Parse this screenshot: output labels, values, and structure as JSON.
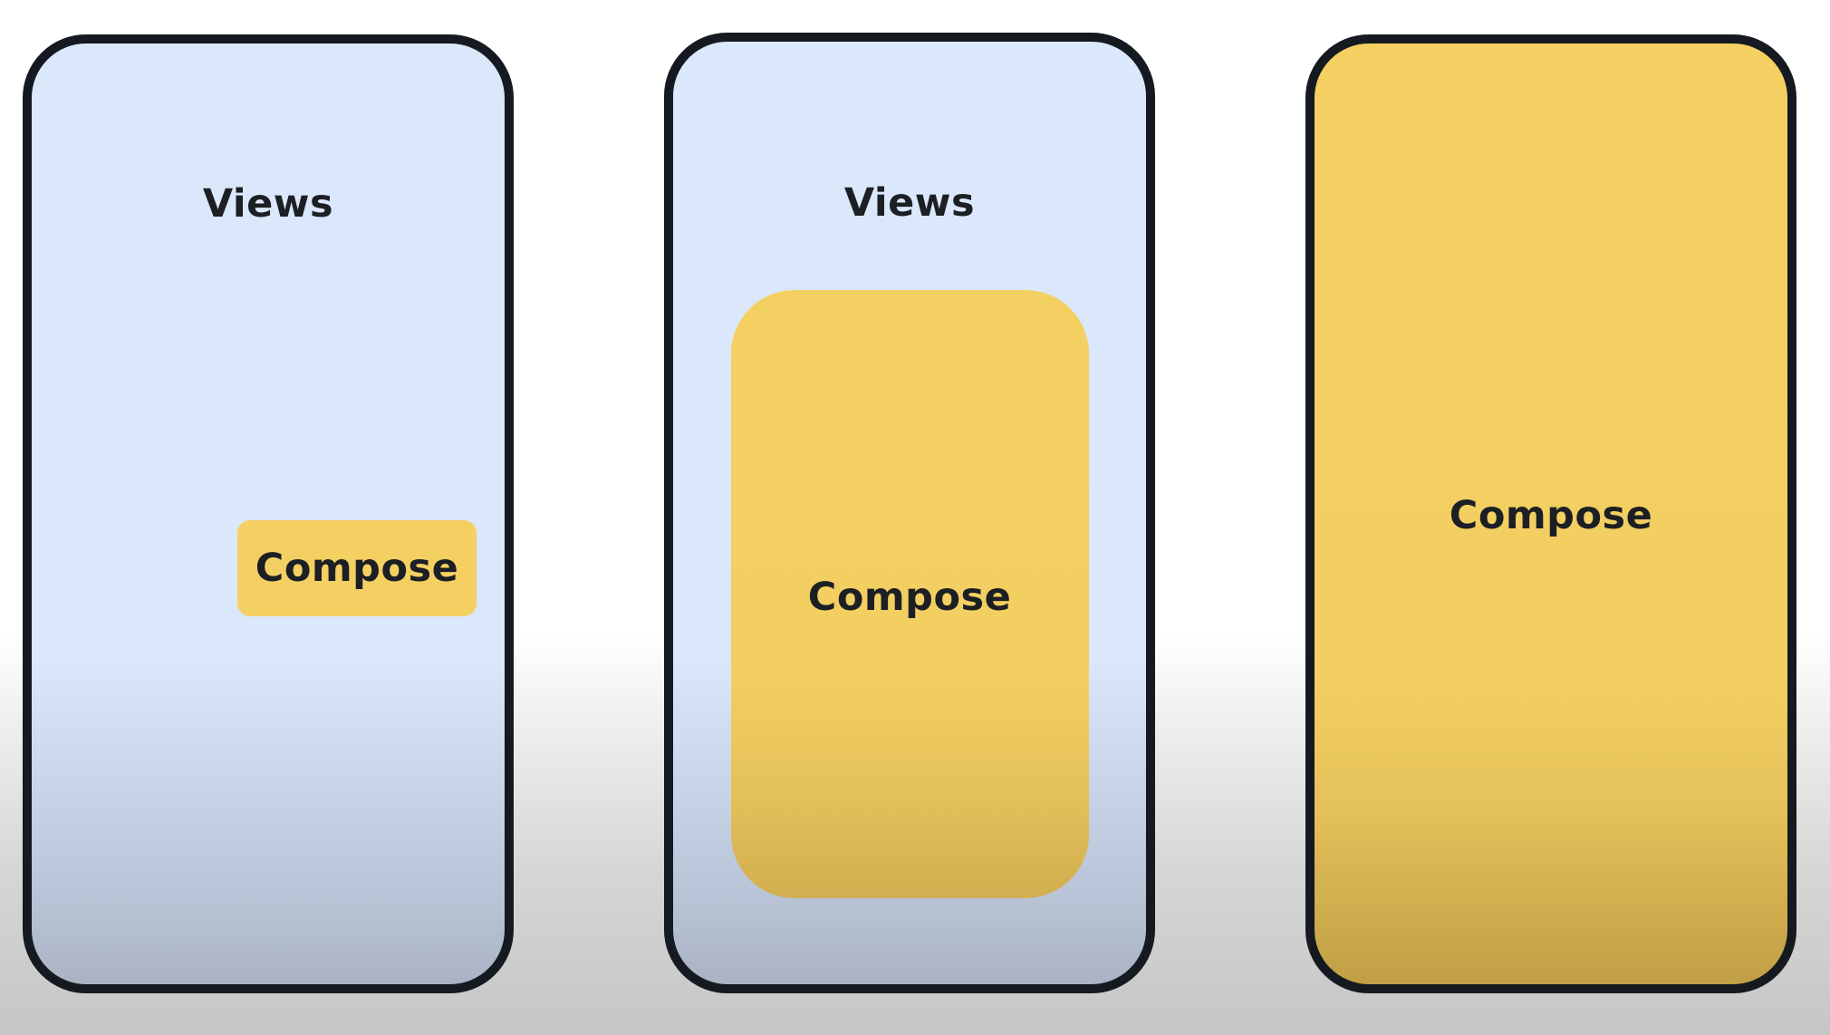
{
  "panels": [
    {
      "views_label": "Views",
      "compose_label": "Compose"
    },
    {
      "views_label": "Views",
      "compose_label": "Compose"
    },
    {
      "compose_label": "Compose"
    }
  ]
}
